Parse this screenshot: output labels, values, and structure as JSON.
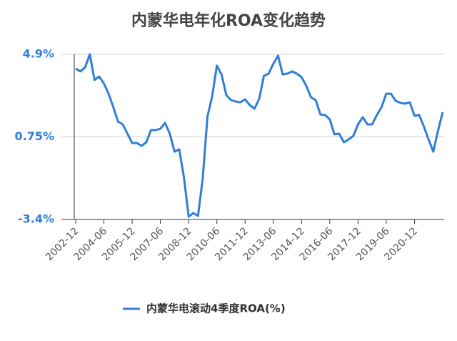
{
  "chart_data": {
    "type": "line",
    "title": "内蒙华电年化ROA变化趋势",
    "categories": [
      "2002-12",
      null,
      null,
      null,
      null,
      null,
      "2004-06",
      null,
      null,
      null,
      null,
      null,
      "2005-12",
      null,
      null,
      null,
      null,
      null,
      "2007-06",
      null,
      null,
      null,
      null,
      null,
      "2008-12",
      null,
      null,
      null,
      null,
      null,
      "2010-06",
      null,
      null,
      null,
      null,
      null,
      "2011-12",
      null,
      null,
      null,
      null,
      null,
      "2013-06",
      null,
      null,
      null,
      null,
      null,
      "2014-12",
      null,
      null,
      null,
      null,
      null,
      "2016-06",
      null,
      null,
      null,
      null,
      null,
      "2017-12",
      null,
      null,
      null,
      null,
      null,
      "2019-06",
      null,
      null,
      null,
      null,
      null,
      "2020-12",
      null,
      null,
      null,
      null,
      null,
      null
    ],
    "series": [
      {
        "name": "内蒙华电滚动4季度ROA(%)",
        "color": "#2f7ed8",
        "values": [
          4.18,
          4.04,
          4.25,
          4.9,
          3.61,
          3.79,
          3.43,
          2.92,
          2.24,
          1.52,
          1.38,
          0.91,
          0.44,
          0.44,
          0.3,
          0.48,
          1.09,
          1.09,
          1.16,
          1.45,
          0.91,
          0.01,
          0.12,
          -1.28,
          -3.26,
          -3.08,
          -3.22,
          -1.35,
          1.77,
          2.78,
          4.33,
          3.89,
          2.85,
          2.6,
          2.53,
          2.49,
          2.64,
          2.35,
          2.17,
          2.67,
          3.82,
          3.93,
          4.43,
          4.83,
          3.89,
          3.93,
          4.04,
          3.93,
          3.75,
          3.32,
          2.74,
          2.6,
          1.88,
          1.85,
          1.63,
          0.88,
          0.91,
          0.48,
          0.62,
          0.8,
          1.38,
          1.74,
          1.38,
          1.38,
          1.85,
          2.24,
          2.92,
          2.92,
          2.56,
          2.46,
          2.42,
          2.49,
          1.81,
          1.85,
          1.27,
          0.62,
          0.01,
          1.06,
          2.0
        ]
      }
    ],
    "ylim": [
      -3.4,
      4.9
    ],
    "yticks": [
      {
        "value": -3.4,
        "label": "-3.4%"
      },
      {
        "value": 0.75,
        "label": "0.75%"
      },
      {
        "value": 4.9,
        "label": "4.9%"
      }
    ],
    "grid": true
  }
}
